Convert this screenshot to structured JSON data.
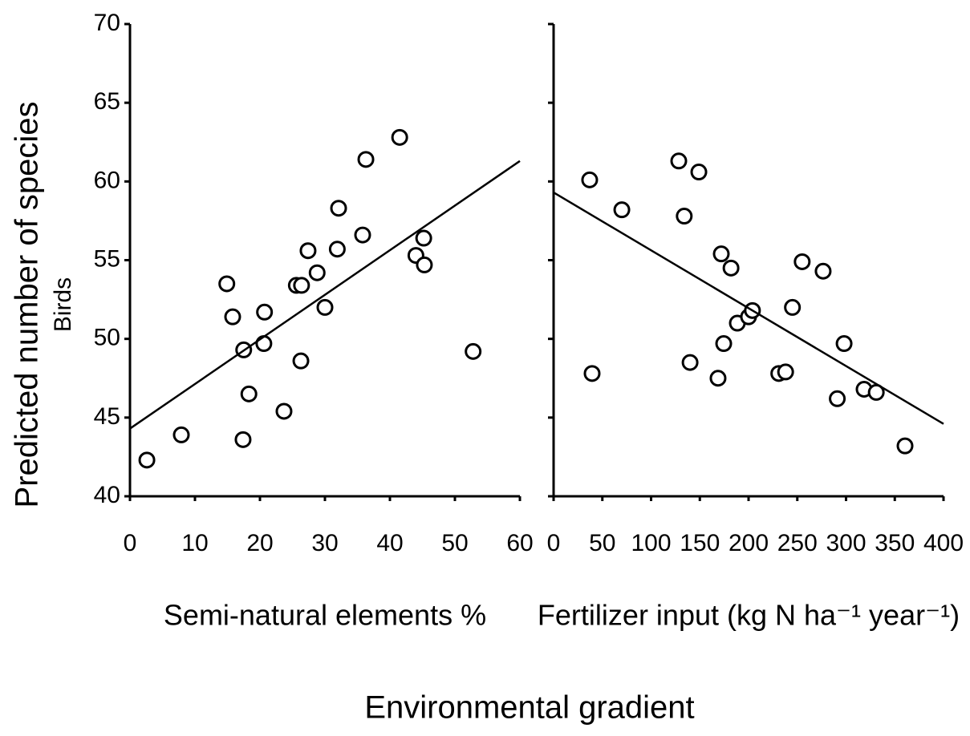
{
  "figure": {
    "y_label": "Predicted number of species",
    "subtitle": "Birds",
    "x_label": "Environmental gradient"
  },
  "chart_data": [
    {
      "type": "scatter",
      "x_label": "Semi-natural elements %",
      "x": [
        2.6,
        7.9,
        14.9,
        15.8,
        17.4,
        17.5,
        18.3,
        20.7,
        20.6,
        23.7,
        25.6,
        26.4,
        26.3,
        27.4,
        28.8,
        30.0,
        31.9,
        32.1,
        35.8,
        36.3,
        41.5,
        44.0,
        45.2,
        45.3,
        52.8
      ],
      "y": [
        42.3,
        43.9,
        53.5,
        51.4,
        43.6,
        49.3,
        46.5,
        51.7,
        49.7,
        45.4,
        53.4,
        53.4,
        48.6,
        55.6,
        54.2,
        52.0,
        55.7,
        58.3,
        56.6,
        61.4,
        62.8,
        55.3,
        56.4,
        54.7,
        49.2
      ],
      "trend": {
        "x": [
          0,
          60
        ],
        "y": [
          44.3,
          61.3
        ]
      },
      "xlim": [
        0,
        60
      ],
      "xticks": [
        0,
        10,
        20,
        30,
        40,
        50,
        60
      ],
      "ylim": [
        40,
        70
      ],
      "yticks": [
        40,
        45,
        50,
        55,
        60,
        65,
        70
      ],
      "ytick_labels": true,
      "color": "#000000"
    },
    {
      "type": "scatter",
      "x_label": "Fertilizer input (kg N ha⁻¹ year⁻¹)",
      "x": [
        37,
        39.5,
        70,
        128.4,
        149,
        134,
        172,
        182,
        140,
        174.5,
        168.7,
        188.5,
        200,
        204,
        245,
        255,
        276.5,
        231,
        238,
        298,
        291,
        318.5,
        331,
        360.5
      ],
      "y": [
        60.1,
        47.8,
        58.2,
        61.3,
        60.6,
        57.8,
        55.4,
        54.5,
        48.5,
        49.7,
        47.5,
        51.0,
        51.4,
        51.8,
        52.0,
        54.9,
        54.3,
        47.8,
        47.9,
        49.7,
        46.2,
        46.8,
        46.6,
        43.2
      ],
      "trend": {
        "x": [
          0,
          400
        ],
        "y": [
          59.3,
          44.6
        ]
      },
      "xlim": [
        0,
        400
      ],
      "xticks": [
        0,
        50,
        100,
        150,
        200,
        250,
        300,
        350,
        400
      ],
      "ylim": [
        40,
        70
      ],
      "yticks": [
        40,
        45,
        50,
        55,
        60,
        65,
        70
      ],
      "ytick_labels": false,
      "color": "#000000"
    }
  ]
}
